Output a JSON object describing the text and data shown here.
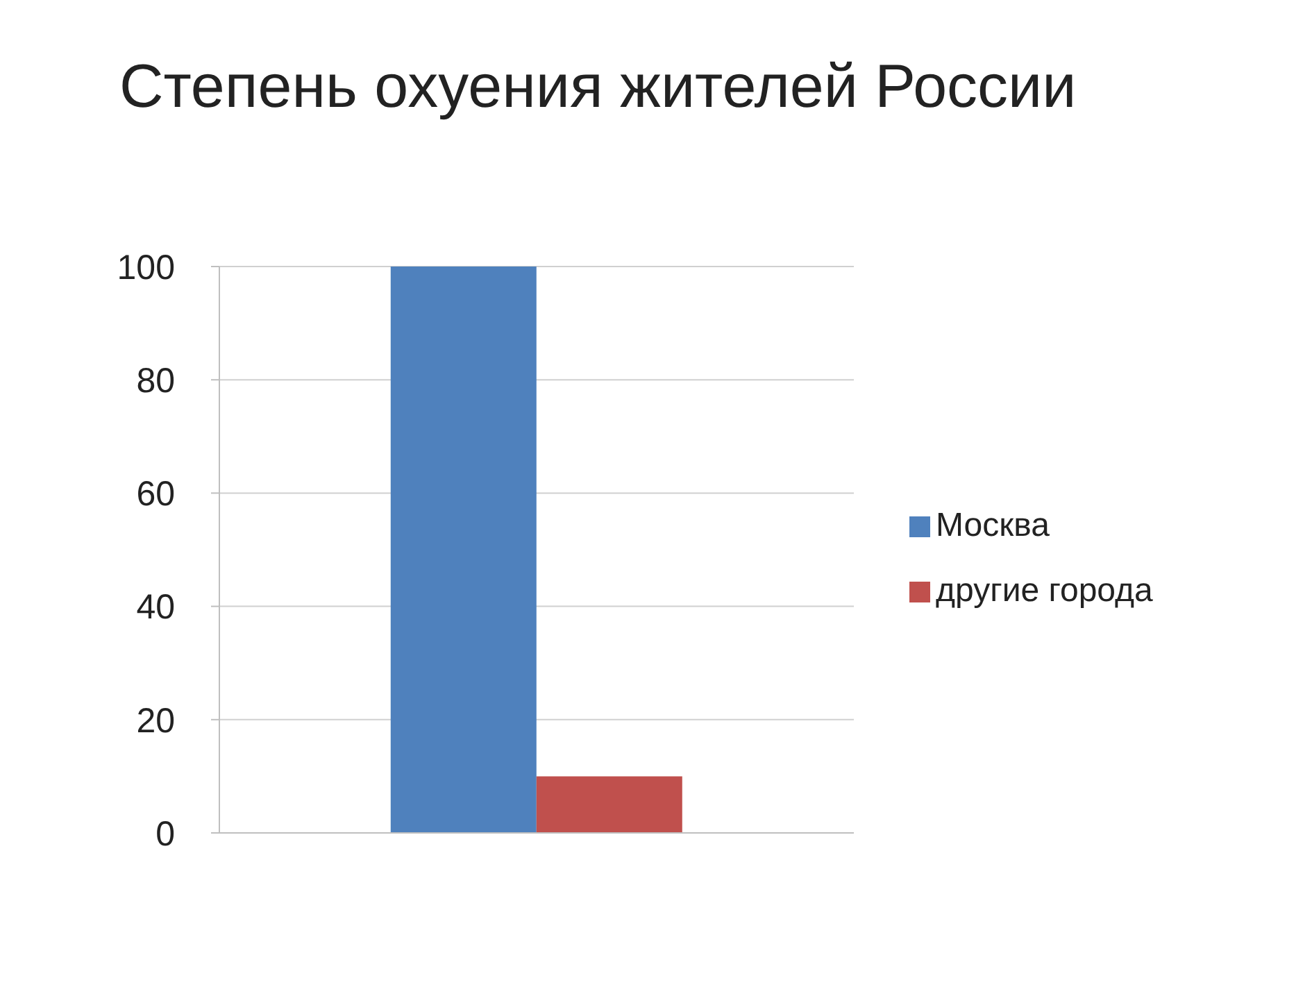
{
  "chart_data": {
    "type": "bar",
    "title": "Степень охуения жителей России",
    "categories": [
      null
    ],
    "series": [
      {
        "name": "Москва",
        "color": "#4f81bd",
        "values": [
          100
        ]
      },
      {
        "name": "другие города",
        "color": "#c0504d",
        "values": [
          10
        ]
      }
    ],
    "ylim": [
      0,
      100
    ],
    "yticks": [
      0,
      20,
      40,
      60,
      80,
      100
    ],
    "grid": "y",
    "legend": "right"
  }
}
